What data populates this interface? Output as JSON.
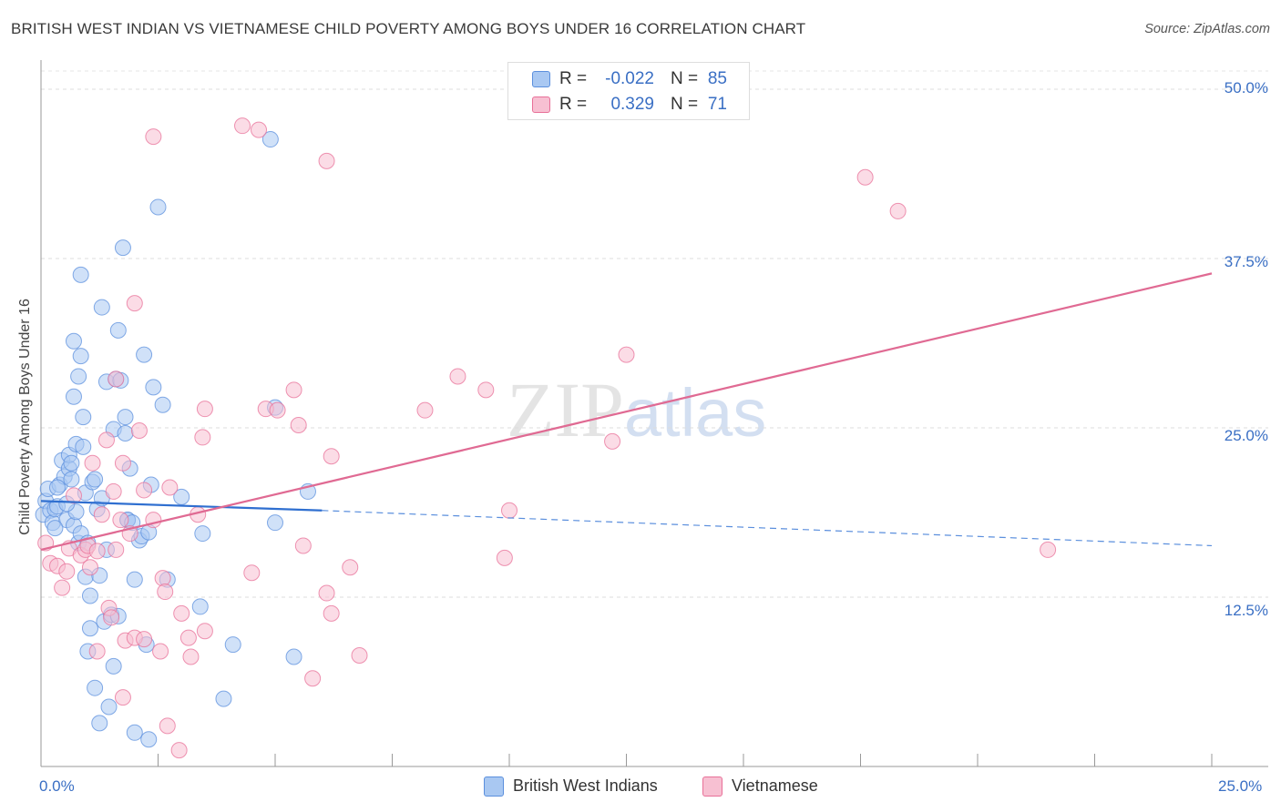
{
  "title": "BRITISH WEST INDIAN VS VIETNAMESE CHILD POVERTY AMONG BOYS UNDER 16 CORRELATION CHART",
  "source": "Source: ZipAtlas.com",
  "watermark": {
    "zip": "ZIP",
    "atlas": "atlas"
  },
  "stats": [
    {
      "r_label": "R =",
      "r_value": "-0.022",
      "n_label": "N =",
      "n_value": "85",
      "color": "#a9c8f2"
    },
    {
      "r_label": "R =",
      "r_value": "0.329",
      "n_label": "N =",
      "n_value": "71",
      "color": "#f7c0d2"
    }
  ],
  "legend": [
    {
      "label": "British West Indians",
      "color": "#a9c8f2"
    },
    {
      "label": "Vietnamese",
      "color": "#f7c0d2"
    }
  ],
  "chart_data": {
    "type": "scatter",
    "xlabel": "",
    "ylabel": "Child Poverty Among Boys Under 16",
    "xlim": [
      0,
      25
    ],
    "ylim": [
      0,
      50
    ],
    "x_ticks": [
      "0.0%",
      "25.0%"
    ],
    "y_ticks": [
      {
        "value": 12.5,
        "label": "12.5%"
      },
      {
        "value": 25.0,
        "label": "25.0%"
      },
      {
        "value": 37.5,
        "label": "37.5%"
      },
      {
        "value": 50.0,
        "label": "50.0%"
      }
    ],
    "grid": "horizontal dashed",
    "legend_position": "bottom-center",
    "series": [
      {
        "name": "British West Indians",
        "color": "#5b8fdd",
        "fill": "#a9c8f2",
        "trend": {
          "x0": 0,
          "y0": 19.6,
          "x1": 6.0,
          "y1": 18.9,
          "x_ext": 25,
          "y_ext": 16.3
        },
        "points": [
          [
            0.05,
            18.6
          ],
          [
            0.1,
            19.6
          ],
          [
            0.15,
            20.5
          ],
          [
            0.2,
            18.9
          ],
          [
            0.25,
            18.0
          ],
          [
            0.3,
            19.0
          ],
          [
            0.35,
            19.2
          ],
          [
            0.4,
            20.8
          ],
          [
            0.45,
            22.6
          ],
          [
            0.5,
            21.4
          ],
          [
            0.55,
            18.2
          ],
          [
            0.6,
            22.0
          ],
          [
            0.65,
            21.2
          ],
          [
            0.7,
            17.8
          ],
          [
            0.75,
            18.8
          ],
          [
            0.8,
            16.5
          ],
          [
            0.85,
            17.2
          ],
          [
            0.9,
            25.8
          ],
          [
            0.95,
            20.2
          ],
          [
            0.3,
            17.6
          ],
          [
            0.35,
            20.6
          ],
          [
            0.55,
            19.4
          ],
          [
            0.6,
            23.0
          ],
          [
            0.65,
            22.4
          ],
          [
            0.7,
            31.4
          ],
          [
            0.7,
            27.3
          ],
          [
            0.75,
            23.8
          ],
          [
            0.8,
            28.8
          ],
          [
            0.85,
            30.3
          ],
          [
            0.85,
            36.3
          ],
          [
            0.9,
            23.6
          ],
          [
            0.95,
            14.0
          ],
          [
            1.0,
            8.5
          ],
          [
            1.0,
            16.5
          ],
          [
            1.05,
            12.6
          ],
          [
            1.05,
            10.2
          ],
          [
            1.1,
            21.0
          ],
          [
            1.15,
            21.2
          ],
          [
            1.15,
            5.8
          ],
          [
            1.2,
            19.0
          ],
          [
            1.25,
            3.2
          ],
          [
            1.25,
            14.1
          ],
          [
            1.3,
            33.9
          ],
          [
            1.3,
            19.8
          ],
          [
            1.35,
            10.7
          ],
          [
            1.4,
            28.4
          ],
          [
            1.4,
            16.0
          ],
          [
            1.45,
            4.4
          ],
          [
            1.5,
            11.2
          ],
          [
            1.55,
            24.9
          ],
          [
            1.55,
            7.4
          ],
          [
            1.6,
            28.6
          ],
          [
            1.65,
            32.2
          ],
          [
            1.65,
            11.1
          ],
          [
            1.7,
            28.5
          ],
          [
            1.75,
            38.3
          ],
          [
            1.8,
            25.8
          ],
          [
            1.8,
            24.6
          ],
          [
            1.85,
            18.2
          ],
          [
            1.85,
            18.2
          ],
          [
            1.9,
            22.0
          ],
          [
            1.95,
            18.0
          ],
          [
            2.0,
            13.8
          ],
          [
            2.0,
            2.5
          ],
          [
            2.1,
            16.7
          ],
          [
            2.15,
            17.0
          ],
          [
            2.2,
            30.4
          ],
          [
            2.25,
            9.0
          ],
          [
            2.3,
            2.0
          ],
          [
            2.3,
            17.3
          ],
          [
            2.35,
            20.8
          ],
          [
            2.4,
            28.0
          ],
          [
            2.5,
            41.3
          ],
          [
            2.6,
            26.7
          ],
          [
            2.7,
            13.8
          ],
          [
            3.0,
            19.9
          ],
          [
            3.4,
            11.8
          ],
          [
            3.45,
            17.2
          ],
          [
            3.9,
            5.0
          ],
          [
            4.1,
            9.0
          ],
          [
            4.9,
            46.3
          ],
          [
            5.0,
            26.5
          ],
          [
            5.0,
            18.0
          ],
          [
            5.4,
            8.1
          ],
          [
            5.7,
            20.3
          ]
        ]
      },
      {
        "name": "Vietnamese",
        "color": "#e87098",
        "fill": "#f7c0d2",
        "trend": {
          "x0": 0,
          "y0": 16.0,
          "x1": 25,
          "y1": 36.4
        },
        "points": [
          [
            0.1,
            16.5
          ],
          [
            0.2,
            15.0
          ],
          [
            0.35,
            14.8
          ],
          [
            0.45,
            13.2
          ],
          [
            0.55,
            14.4
          ],
          [
            0.6,
            16.1
          ],
          [
            0.7,
            20.0
          ],
          [
            0.85,
            15.6
          ],
          [
            0.95,
            16.0
          ],
          [
            1.0,
            16.3
          ],
          [
            1.05,
            14.7
          ],
          [
            1.1,
            22.4
          ],
          [
            1.2,
            15.9
          ],
          [
            1.2,
            8.5
          ],
          [
            1.3,
            18.6
          ],
          [
            1.4,
            24.1
          ],
          [
            1.45,
            11.7
          ],
          [
            1.5,
            11.0
          ],
          [
            1.55,
            20.3
          ],
          [
            1.6,
            16.0
          ],
          [
            1.6,
            28.6
          ],
          [
            1.7,
            18.2
          ],
          [
            1.75,
            22.4
          ],
          [
            1.75,
            5.1
          ],
          [
            1.8,
            9.3
          ],
          [
            1.9,
            17.2
          ],
          [
            2.0,
            34.2
          ],
          [
            2.0,
            9.5
          ],
          [
            2.1,
            24.8
          ],
          [
            2.2,
            20.4
          ],
          [
            2.2,
            9.4
          ],
          [
            2.4,
            46.5
          ],
          [
            2.4,
            18.2
          ],
          [
            2.55,
            8.5
          ],
          [
            2.6,
            13.9
          ],
          [
            2.65,
            12.9
          ],
          [
            2.7,
            3.0
          ],
          [
            2.75,
            20.6
          ],
          [
            2.95,
            1.2
          ],
          [
            3.0,
            11.3
          ],
          [
            3.15,
            9.5
          ],
          [
            3.2,
            8.1
          ],
          [
            3.35,
            18.6
          ],
          [
            3.45,
            24.3
          ],
          [
            3.5,
            26.4
          ],
          [
            3.5,
            10.0
          ],
          [
            4.3,
            47.3
          ],
          [
            4.5,
            14.3
          ],
          [
            4.65,
            47.0
          ],
          [
            4.8,
            26.4
          ],
          [
            5.05,
            26.3
          ],
          [
            5.4,
            27.8
          ],
          [
            5.5,
            25.2
          ],
          [
            5.6,
            16.3
          ],
          [
            5.8,
            6.5
          ],
          [
            6.1,
            44.7
          ],
          [
            6.1,
            12.8
          ],
          [
            6.2,
            11.3
          ],
          [
            6.2,
            22.9
          ],
          [
            6.6,
            14.7
          ],
          [
            6.8,
            8.2
          ],
          [
            8.2,
            26.3
          ],
          [
            8.9,
            28.8
          ],
          [
            9.5,
            27.8
          ],
          [
            9.9,
            15.4
          ],
          [
            10.0,
            18.9
          ],
          [
            12.2,
            24.0
          ],
          [
            12.5,
            30.4
          ],
          [
            17.6,
            43.5
          ],
          [
            18.3,
            41.0
          ],
          [
            21.5,
            16.0
          ]
        ]
      }
    ]
  }
}
